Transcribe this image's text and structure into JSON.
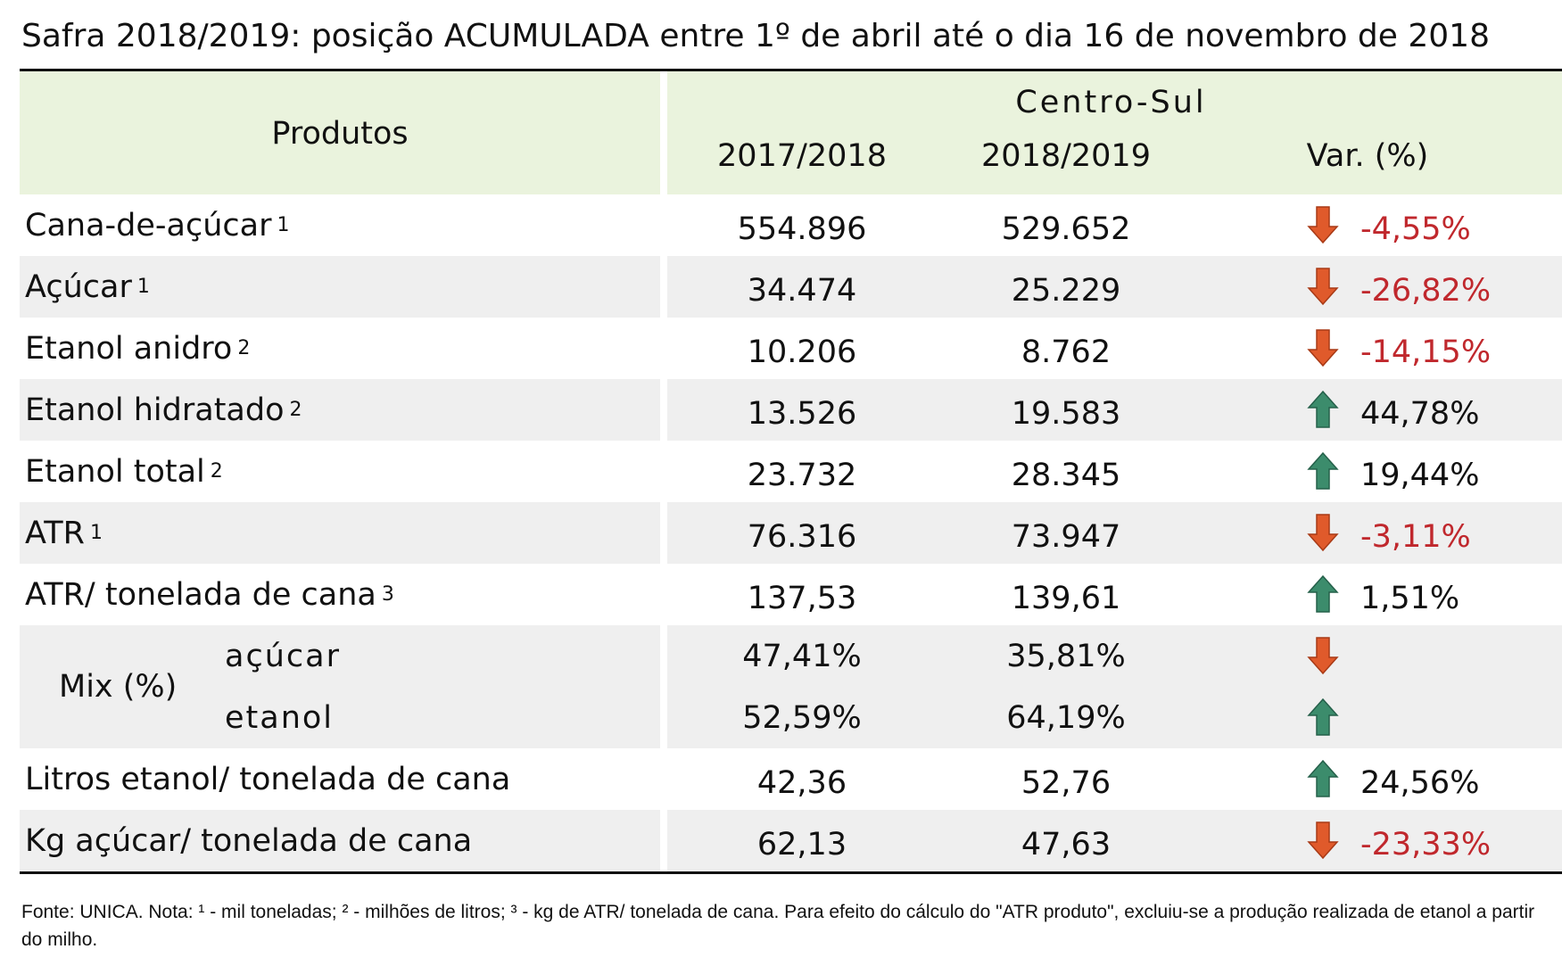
{
  "title": "Safra 2018/2019: posição ACUMULADA entre 1º de abril até o dia 16 de novembro de 2018",
  "table": {
    "header": {
      "product": "Produtos",
      "region": "Centro-Sul",
      "columns": [
        "2017/2018",
        "2018/2019",
        "Var. (%)"
      ]
    },
    "rows": [
      {
        "label": "Cana-de-açúcar",
        "note": "1",
        "values": [
          "554.896",
          "529.652"
        ],
        "var": "-4,55%",
        "trend": "down"
      },
      {
        "label": "Açúcar",
        "note": "1",
        "values": [
          "34.474",
          "25.229"
        ],
        "var": "-26,82%",
        "trend": "down"
      },
      {
        "label": "Etanol anidro",
        "note": "2",
        "values": [
          "10.206",
          "8.762"
        ],
        "var": "-14,15%",
        "trend": "down"
      },
      {
        "label": "Etanol hidratado",
        "note": "2",
        "values": [
          "13.526",
          "19.583"
        ],
        "var": "44,78%",
        "trend": "up"
      },
      {
        "label": "Etanol total",
        "note": "2",
        "values": [
          "23.732",
          "28.345"
        ],
        "var": "19,44%",
        "trend": "up"
      },
      {
        "label": "ATR",
        "note": "1",
        "values": [
          "76.316",
          "73.947"
        ],
        "var": "-3,11%",
        "trend": "down"
      },
      {
        "label": "ATR/ tonelada de cana",
        "note": "3",
        "values": [
          "137,53",
          "139,61"
        ],
        "var": "1,51%",
        "trend": "up"
      },
      {
        "label": "Mix (%)",
        "sub": [
          {
            "label": "açúcar",
            "values": [
              "47,41%",
              "35,81%"
            ],
            "trend": "down"
          },
          {
            "label": "etanol",
            "values": [
              "52,59%",
              "64,19%"
            ],
            "trend": "up"
          }
        ]
      },
      {
        "label": "Litros etanol/ tonelada de cana",
        "values": [
          "42,36",
          "52,76"
        ],
        "var": "24,56%",
        "trend": "up"
      },
      {
        "label": "Kg açúcar/ tonelada de cana",
        "values": [
          "62,13",
          "47,63"
        ],
        "var": "-23,33%",
        "trend": "down"
      }
    ]
  },
  "footnote": "Fonte: UNICA. Nota: ¹ - mil toneladas; ² - milhões de litros; ³ - kg de ATR/ tonelada de cana. Para efeito do cálculo do \"ATR produto\", excluiu-se a produção realizada de etanol a partir do milho."
}
